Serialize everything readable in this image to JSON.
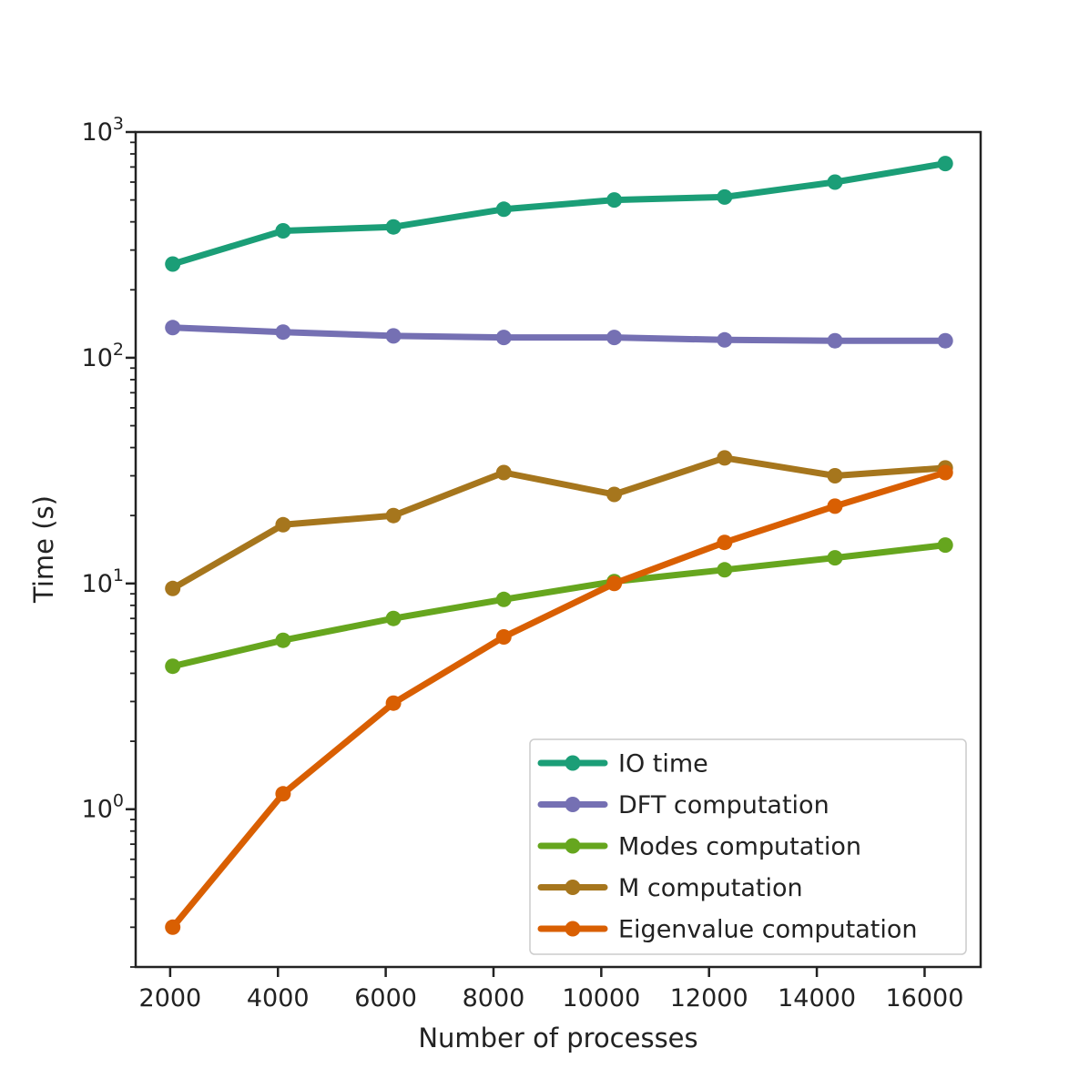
{
  "chart_data": {
    "type": "line",
    "title": "",
    "xlabel": "Number of processes",
    "ylabel": "Time (s)",
    "yscale": "log",
    "xlim": [
      1360,
      17040
    ],
    "ylim": [
      0.2,
      1000
    ],
    "grid": false,
    "legend_position": "lower-right",
    "x": [
      2048,
      4096,
      6144,
      8192,
      10240,
      12288,
      14336,
      16384
    ],
    "x_ticks": [
      2000,
      4000,
      6000,
      8000,
      10000,
      12000,
      14000,
      16000
    ],
    "x_tick_labels": [
      "2000",
      "4000",
      "6000",
      "8000",
      "10000",
      "12000",
      "14000",
      "16000"
    ],
    "y_major_ticks": [
      {
        "value": 1,
        "base": "10",
        "exp": "0"
      },
      {
        "value": 10,
        "base": "10",
        "exp": "1"
      },
      {
        "value": 100,
        "base": "10",
        "exp": "2"
      },
      {
        "value": 1000,
        "base": "10",
        "exp": "3"
      }
    ],
    "series": [
      {
        "name": "IO time",
        "color": "#1b9e77",
        "values": [
          260,
          365,
          380,
          455,
          500,
          515,
          600,
          725
        ]
      },
      {
        "name": "DFT computation",
        "color": "#7570b3",
        "values": [
          136,
          130,
          125,
          123,
          123,
          120,
          119,
          119
        ]
      },
      {
        "name": "Modes computation",
        "color": "#66a61e",
        "values": [
          4.3,
          5.6,
          7.0,
          8.5,
          10.2,
          11.5,
          13.0,
          14.8
        ]
      },
      {
        "name": "M computation",
        "color": "#a6761d",
        "values": [
          9.5,
          18.2,
          20.0,
          31.0,
          24.8,
          36.0,
          30.0,
          32.5
        ]
      },
      {
        "name": "Eigenvalue computation",
        "color": "#d95f02",
        "values": [
          0.3,
          1.17,
          2.95,
          5.8,
          10.0,
          15.2,
          22.0,
          31.0
        ]
      }
    ]
  }
}
